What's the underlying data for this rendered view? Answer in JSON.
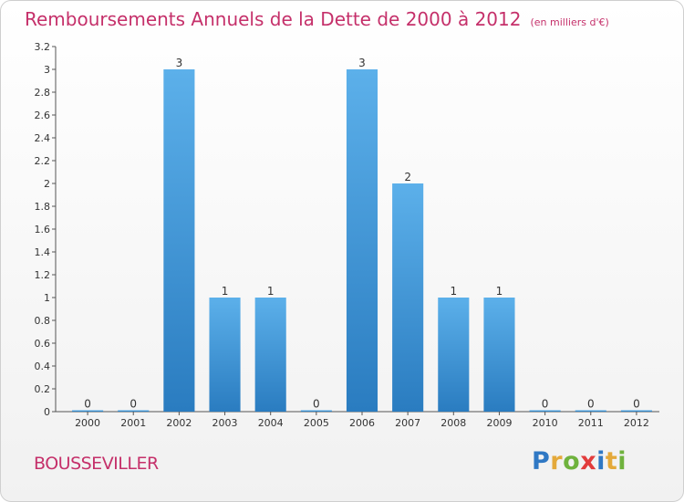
{
  "title": "Remboursements Annuels de la Dette de 2000 à 2012",
  "title_unit": "(en milliers d'€)",
  "commune": "BOUSSEVILLER",
  "logo": {
    "letters": [
      "P",
      "r",
      "o",
      "x",
      "i",
      "t",
      "i"
    ],
    "colors": [
      "#2f78c4",
      "#e4a93a",
      "#6fb23d",
      "#e23c3c",
      "#2f78c4",
      "#e4a93a",
      "#6fb23d"
    ]
  },
  "colors": {
    "title": "#c5306a",
    "bar_top": "#5cb0ea",
    "bar_bottom": "#2a7cc0"
  },
  "chart_data": {
    "type": "bar",
    "categories": [
      "2000",
      "2001",
      "2002",
      "2003",
      "2004",
      "2005",
      "2006",
      "2007",
      "2008",
      "2009",
      "2010",
      "2011",
      "2012"
    ],
    "values": [
      0,
      0,
      3,
      1,
      1,
      0,
      3,
      2,
      1,
      1,
      0,
      0,
      0
    ],
    "data_labels": [
      "0",
      "0",
      "3",
      "1",
      "1",
      "0",
      "3",
      "2",
      "1",
      "1",
      "0",
      "0",
      "0"
    ],
    "ylim": [
      0,
      3.2
    ],
    "yticks": [
      {
        "value": 0,
        "label": "0"
      },
      {
        "value": 0.2,
        "label": "0.2"
      },
      {
        "value": 0.4,
        "label": "0.4"
      },
      {
        "value": 0.6,
        "label": "0.6"
      },
      {
        "value": 0.8,
        "label": "0.8"
      },
      {
        "value": 1,
        "label": "1"
      },
      {
        "value": 1.2,
        "label": "1.2"
      },
      {
        "value": 1.4,
        "label": "1.4"
      },
      {
        "value": 1.6,
        "label": "1.6"
      },
      {
        "value": 1.8,
        "label": "1.8"
      },
      {
        "value": 2,
        "label": "2"
      },
      {
        "value": 2.2,
        "label": "2.2"
      },
      {
        "value": 2.4,
        "label": "2.4"
      },
      {
        "value": 2.6,
        "label": "2.6"
      },
      {
        "value": 2.8,
        "label": "2.8"
      },
      {
        "value": 3,
        "label": "3"
      },
      {
        "value": 3.2,
        "label": "3.2"
      }
    ],
    "xlabel": "",
    "ylabel": "",
    "grid": false,
    "legend": "none"
  }
}
